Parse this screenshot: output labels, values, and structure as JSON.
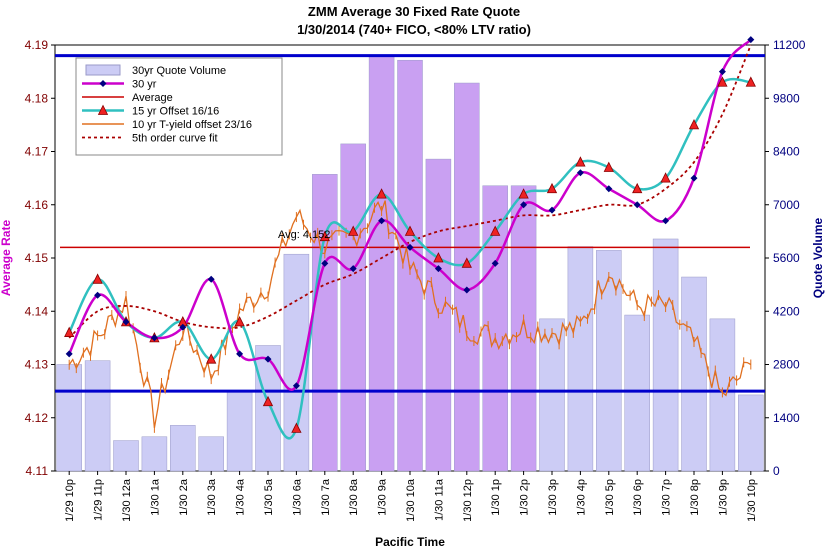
{
  "chart_data": {
    "type": "combo",
    "title": "ZMM Average 30 Fixed Rate Quote",
    "subtitle": "1/30/2014  (740+ FICO, <80% LTV ratio)",
    "xlabel": "Pacific Time",
    "ylabel_left": "Average Rate",
    "ylabel_right": "Quote Volume",
    "ylim_left": [
      4.11,
      4.19
    ],
    "ylim_right": [
      0,
      11200
    ],
    "yticks_left": [
      "4.11",
      "4.12",
      "4.13",
      "4.14",
      "4.15",
      "4.16",
      "4.17",
      "4.18",
      "4.19"
    ],
    "yticks_right": [
      "0",
      "1400",
      "2800",
      "4200",
      "5600",
      "7000",
      "8400",
      "9800",
      "11200"
    ],
    "categories": [
      "1/29 10p",
      "1/29 11p",
      "1/30 12a",
      "1/30 1a",
      "1/30 2a",
      "1/30 3a",
      "1/30 4a",
      "1/30 5a",
      "1/30 6a",
      "1/30 7a",
      "1/30 8a",
      "1/30 9a",
      "1/30 10a",
      "1/30 11a",
      "1/30 12p",
      "1/30 1p",
      "1/30 2p",
      "1/30 3p",
      "1/30 4p",
      "1/30 5p",
      "1/30 6p",
      "1/30 7p",
      "1/30 8p",
      "1/30 9p",
      "1/30 10p"
    ],
    "grid": false,
    "legend_position": "top-left",
    "average_label": "Avg: 4.152",
    "average_value": 4.152,
    "band_lines": [
      4.188,
      4.125
    ],
    "series": [
      {
        "name": "30yr Quote Volume",
        "type": "bar",
        "axis": "right",
        "values": [
          2800,
          2900,
          800,
          900,
          1200,
          900,
          2100,
          3300,
          5700,
          7800,
          8600,
          10900,
          10800,
          8200,
          10200,
          7500,
          7500,
          4000,
          5900,
          5800,
          4100,
          6100,
          5100,
          4000,
          2000
        ]
      },
      {
        "name": "30 yr",
        "type": "line",
        "axis": "left",
        "values": [
          4.132,
          4.143,
          4.138,
          4.135,
          4.137,
          4.146,
          4.132,
          4.131,
          4.126,
          4.149,
          4.148,
          4.157,
          4.152,
          4.148,
          4.144,
          4.149,
          4.16,
          4.159,
          4.166,
          4.163,
          4.16,
          4.157,
          4.165,
          4.185,
          4.191
        ]
      },
      {
        "name": "Average",
        "type": "line",
        "axis": "left",
        "values": [
          4.152,
          4.152,
          4.152,
          4.152,
          4.152,
          4.152,
          4.152,
          4.152,
          4.152,
          4.152,
          4.152,
          4.152,
          4.152,
          4.152,
          4.152,
          4.152,
          4.152,
          4.152,
          4.152,
          4.152,
          4.152,
          4.152,
          4.152,
          4.152,
          4.152
        ]
      },
      {
        "name": "15 yr Offset  16/16",
        "type": "line",
        "axis": "left",
        "values": [
          4.136,
          4.146,
          4.138,
          4.135,
          4.138,
          4.131,
          4.138,
          4.123,
          4.118,
          4.154,
          4.155,
          4.162,
          4.155,
          4.15,
          4.149,
          4.155,
          4.162,
          4.163,
          4.168,
          4.167,
          4.163,
          4.165,
          4.175,
          4.183,
          4.183
        ]
      },
      {
        "name": "10 yr T-yield offset 23/16",
        "type": "line",
        "axis": "left",
        "values": [
          4.13,
          4.135,
          4.142,
          4.12,
          4.137,
          4.128,
          4.14,
          4.145,
          4.158,
          4.152,
          4.154,
          4.16,
          4.148,
          4.142,
          4.137,
          4.135,
          4.137,
          4.136,
          4.137,
          4.148,
          4.141,
          4.141,
          4.134,
          4.124,
          4.13
        ]
      },
      {
        "name": "5th order curve fit",
        "type": "line",
        "axis": "left",
        "values": [
          4.135,
          4.14,
          4.141,
          4.14,
          4.138,
          4.137,
          4.137,
          4.139,
          4.142,
          4.145,
          4.147,
          4.15,
          4.153,
          4.155,
          4.156,
          4.157,
          4.158,
          4.158,
          4.159,
          4.16,
          4.16,
          4.163,
          4.168,
          4.177,
          4.19
        ]
      }
    ]
  }
}
